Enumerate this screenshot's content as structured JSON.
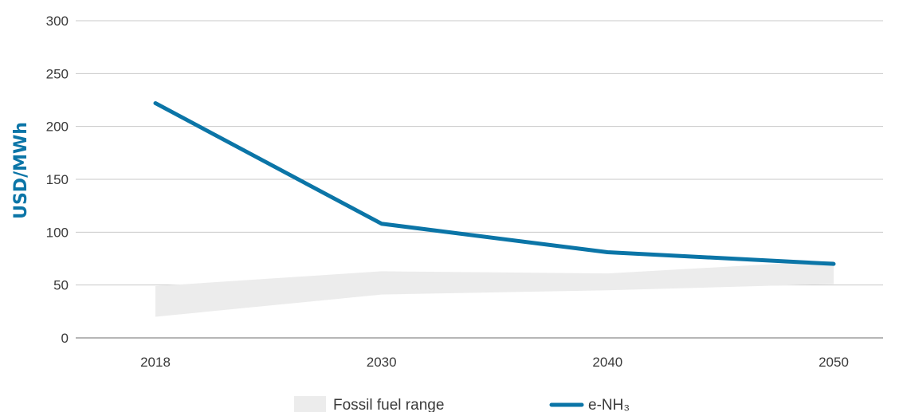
{
  "chart_data": {
    "type": "line",
    "title": "",
    "xlabel": "",
    "ylabel": "USD/MWh",
    "categories": [
      "2018",
      "2030",
      "2040",
      "2050"
    ],
    "ylim": [
      0,
      300
    ],
    "yticks": [
      0,
      50,
      100,
      150,
      200,
      250,
      300
    ],
    "yticks_labels": [
      "0",
      "50",
      "100",
      "150",
      "200",
      "250",
      "300"
    ],
    "grid": true,
    "legend_position": "bottom",
    "band": {
      "name": "Fossil fuel range",
      "low": [
        20,
        41,
        45,
        51
      ],
      "high": [
        49,
        63,
        61,
        73
      ],
      "color": "#ececec"
    },
    "series": [
      {
        "name": "e-NH₃",
        "values": [
          222,
          108,
          81,
          70
        ],
        "color": "#0b75a7"
      }
    ]
  }
}
